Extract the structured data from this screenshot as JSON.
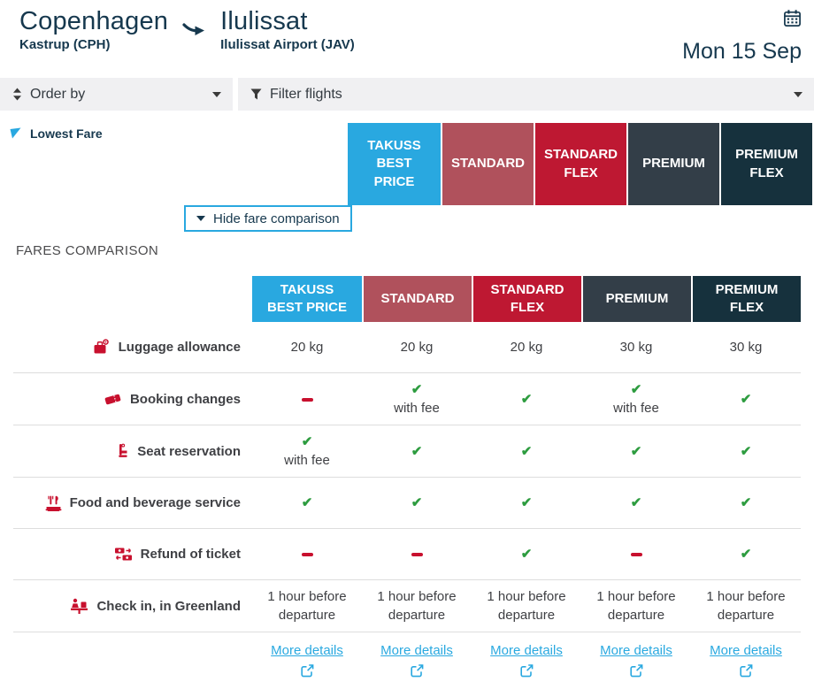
{
  "header": {
    "origin_city": "Copenhagen",
    "origin_airport": "Kastrup (CPH)",
    "destination_city": "Ilulissat",
    "destination_airport": "Ilulissat Airport (JAV)",
    "date": "Mon 15 Sep"
  },
  "controls": {
    "order_by_label": "Order by",
    "filter_label": "Filter flights"
  },
  "fare_band": {
    "lowest_fare_label": "Lowest Fare",
    "hide_comparison_label": "Hide fare comparison"
  },
  "section_title": "FARES COMPARISON",
  "fare_classes": [
    {
      "name": "TAKUSS BEST PRICE",
      "color": "#29A8E0"
    },
    {
      "name": "STANDARD",
      "color": "#B0515C"
    },
    {
      "name": "STANDARD FLEX",
      "color": "#BE1832"
    },
    {
      "name": "PREMIUM",
      "color": "#333E48"
    },
    {
      "name": "PREMIUM FLEX",
      "color": "#16313D"
    }
  ],
  "comparison": {
    "rows": [
      {
        "label": "Luggage allowance",
        "icon": "luggage-icon",
        "values": [
          {
            "kind": "text",
            "text": "20 kg"
          },
          {
            "kind": "text",
            "text": "20 kg"
          },
          {
            "kind": "text",
            "text": "20 kg"
          },
          {
            "kind": "text",
            "text": "30 kg"
          },
          {
            "kind": "text",
            "text": "30 kg"
          }
        ]
      },
      {
        "label": "Booking changes",
        "icon": "ticket-icon",
        "values": [
          {
            "kind": "dash"
          },
          {
            "kind": "check",
            "note": "with fee"
          },
          {
            "kind": "check"
          },
          {
            "kind": "check",
            "note": "with fee"
          },
          {
            "kind": "check"
          }
        ]
      },
      {
        "label": "Seat reservation",
        "icon": "seat-icon",
        "values": [
          {
            "kind": "check",
            "note": "with fee"
          },
          {
            "kind": "check"
          },
          {
            "kind": "check"
          },
          {
            "kind": "check"
          },
          {
            "kind": "check"
          }
        ]
      },
      {
        "label": "Food and beverage service",
        "icon": "food-icon",
        "values": [
          {
            "kind": "check"
          },
          {
            "kind": "check"
          },
          {
            "kind": "check"
          },
          {
            "kind": "check"
          },
          {
            "kind": "check"
          }
        ]
      },
      {
        "label": "Refund of ticket",
        "icon": "refund-icon",
        "values": [
          {
            "kind": "dash"
          },
          {
            "kind": "dash"
          },
          {
            "kind": "check"
          },
          {
            "kind": "dash"
          },
          {
            "kind": "check"
          }
        ]
      },
      {
        "label": "Check in, in Greenland",
        "icon": "checkin-icon",
        "values": [
          {
            "kind": "text",
            "text": "1 hour before departure"
          },
          {
            "kind": "text",
            "text": "1 hour before departure"
          },
          {
            "kind": "text",
            "text": "1 hour before departure"
          },
          {
            "kind": "text",
            "text": "1 hour before departure"
          },
          {
            "kind": "text",
            "text": "1 hour before departure"
          }
        ]
      }
    ],
    "more_details_label": "More details"
  },
  "colors": {
    "accent_blue": "#29A8E0",
    "brand_red": "#C8102E",
    "check_green": "#2D9C3F",
    "navy": "#16384E",
    "control_bg": "#F0F0F2",
    "divider": "#DDDDDD"
  }
}
